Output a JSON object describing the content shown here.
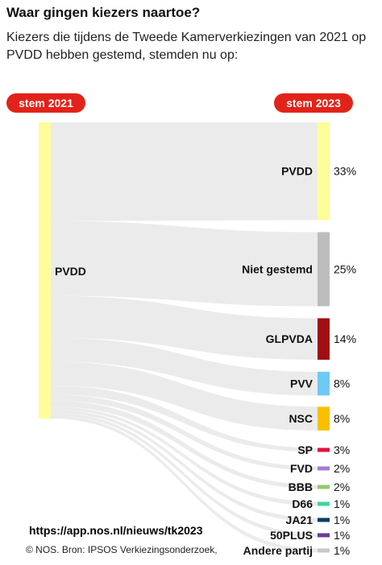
{
  "header": {
    "title": "Waar gingen kiezers naartoe?",
    "subtitle": "Kiezers die tijdens de Tweede Kamerverkiezingen van 2021 op PVDD hebben gestemd, stemden nu op:"
  },
  "labels": {
    "left_pill": "stem 2021",
    "right_pill": "stem 2023"
  },
  "footer": {
    "url": "https://app.nos.nl/nieuws/tk2023",
    "credit": "© NOS. Bron: IPSOS Verkiezingsonderzoek,"
  },
  "colors": {
    "accent": "#e2231a",
    "flow": "#ebebeb",
    "source_node": "#fdfd9a"
  },
  "chart_data": {
    "type": "sankey",
    "source": "PVDD",
    "targets": [
      {
        "name": "PVDD",
        "label": "33%",
        "value": 33,
        "color": "#fdfd9a"
      },
      {
        "name": "Niet gestemd",
        "label": "25%",
        "value": 25,
        "color": "#bdbdbd"
      },
      {
        "name": "GLPVDA",
        "label": "14%",
        "value": 14,
        "color": "#a00d12"
      },
      {
        "name": "PVV",
        "label": "8%",
        "value": 8,
        "color": "#6ec9f3"
      },
      {
        "name": "NSC",
        "label": "8%",
        "value": 8,
        "color": "#f6c000"
      },
      {
        "name": "SP",
        "label": "3%",
        "value": 3,
        "color": "#e3103a"
      },
      {
        "name": "FVD",
        "label": "2%",
        "value": 2,
        "color": "#a57bd6"
      },
      {
        "name": "BBB",
        "label": "2%",
        "value": 2,
        "color": "#93c86c"
      },
      {
        "name": "D66",
        "label": "1%",
        "value": 1,
        "color": "#3ed69a"
      },
      {
        "name": "JA21",
        "label": "1%",
        "value": 1,
        "color": "#0e3a63"
      },
      {
        "name": "50PLUS",
        "label": "1%",
        "value": 1,
        "color": "#6b3c8f"
      },
      {
        "name": "Andere partij",
        "label": "1%",
        "value": 1,
        "color": "#c8c8c8"
      }
    ]
  }
}
